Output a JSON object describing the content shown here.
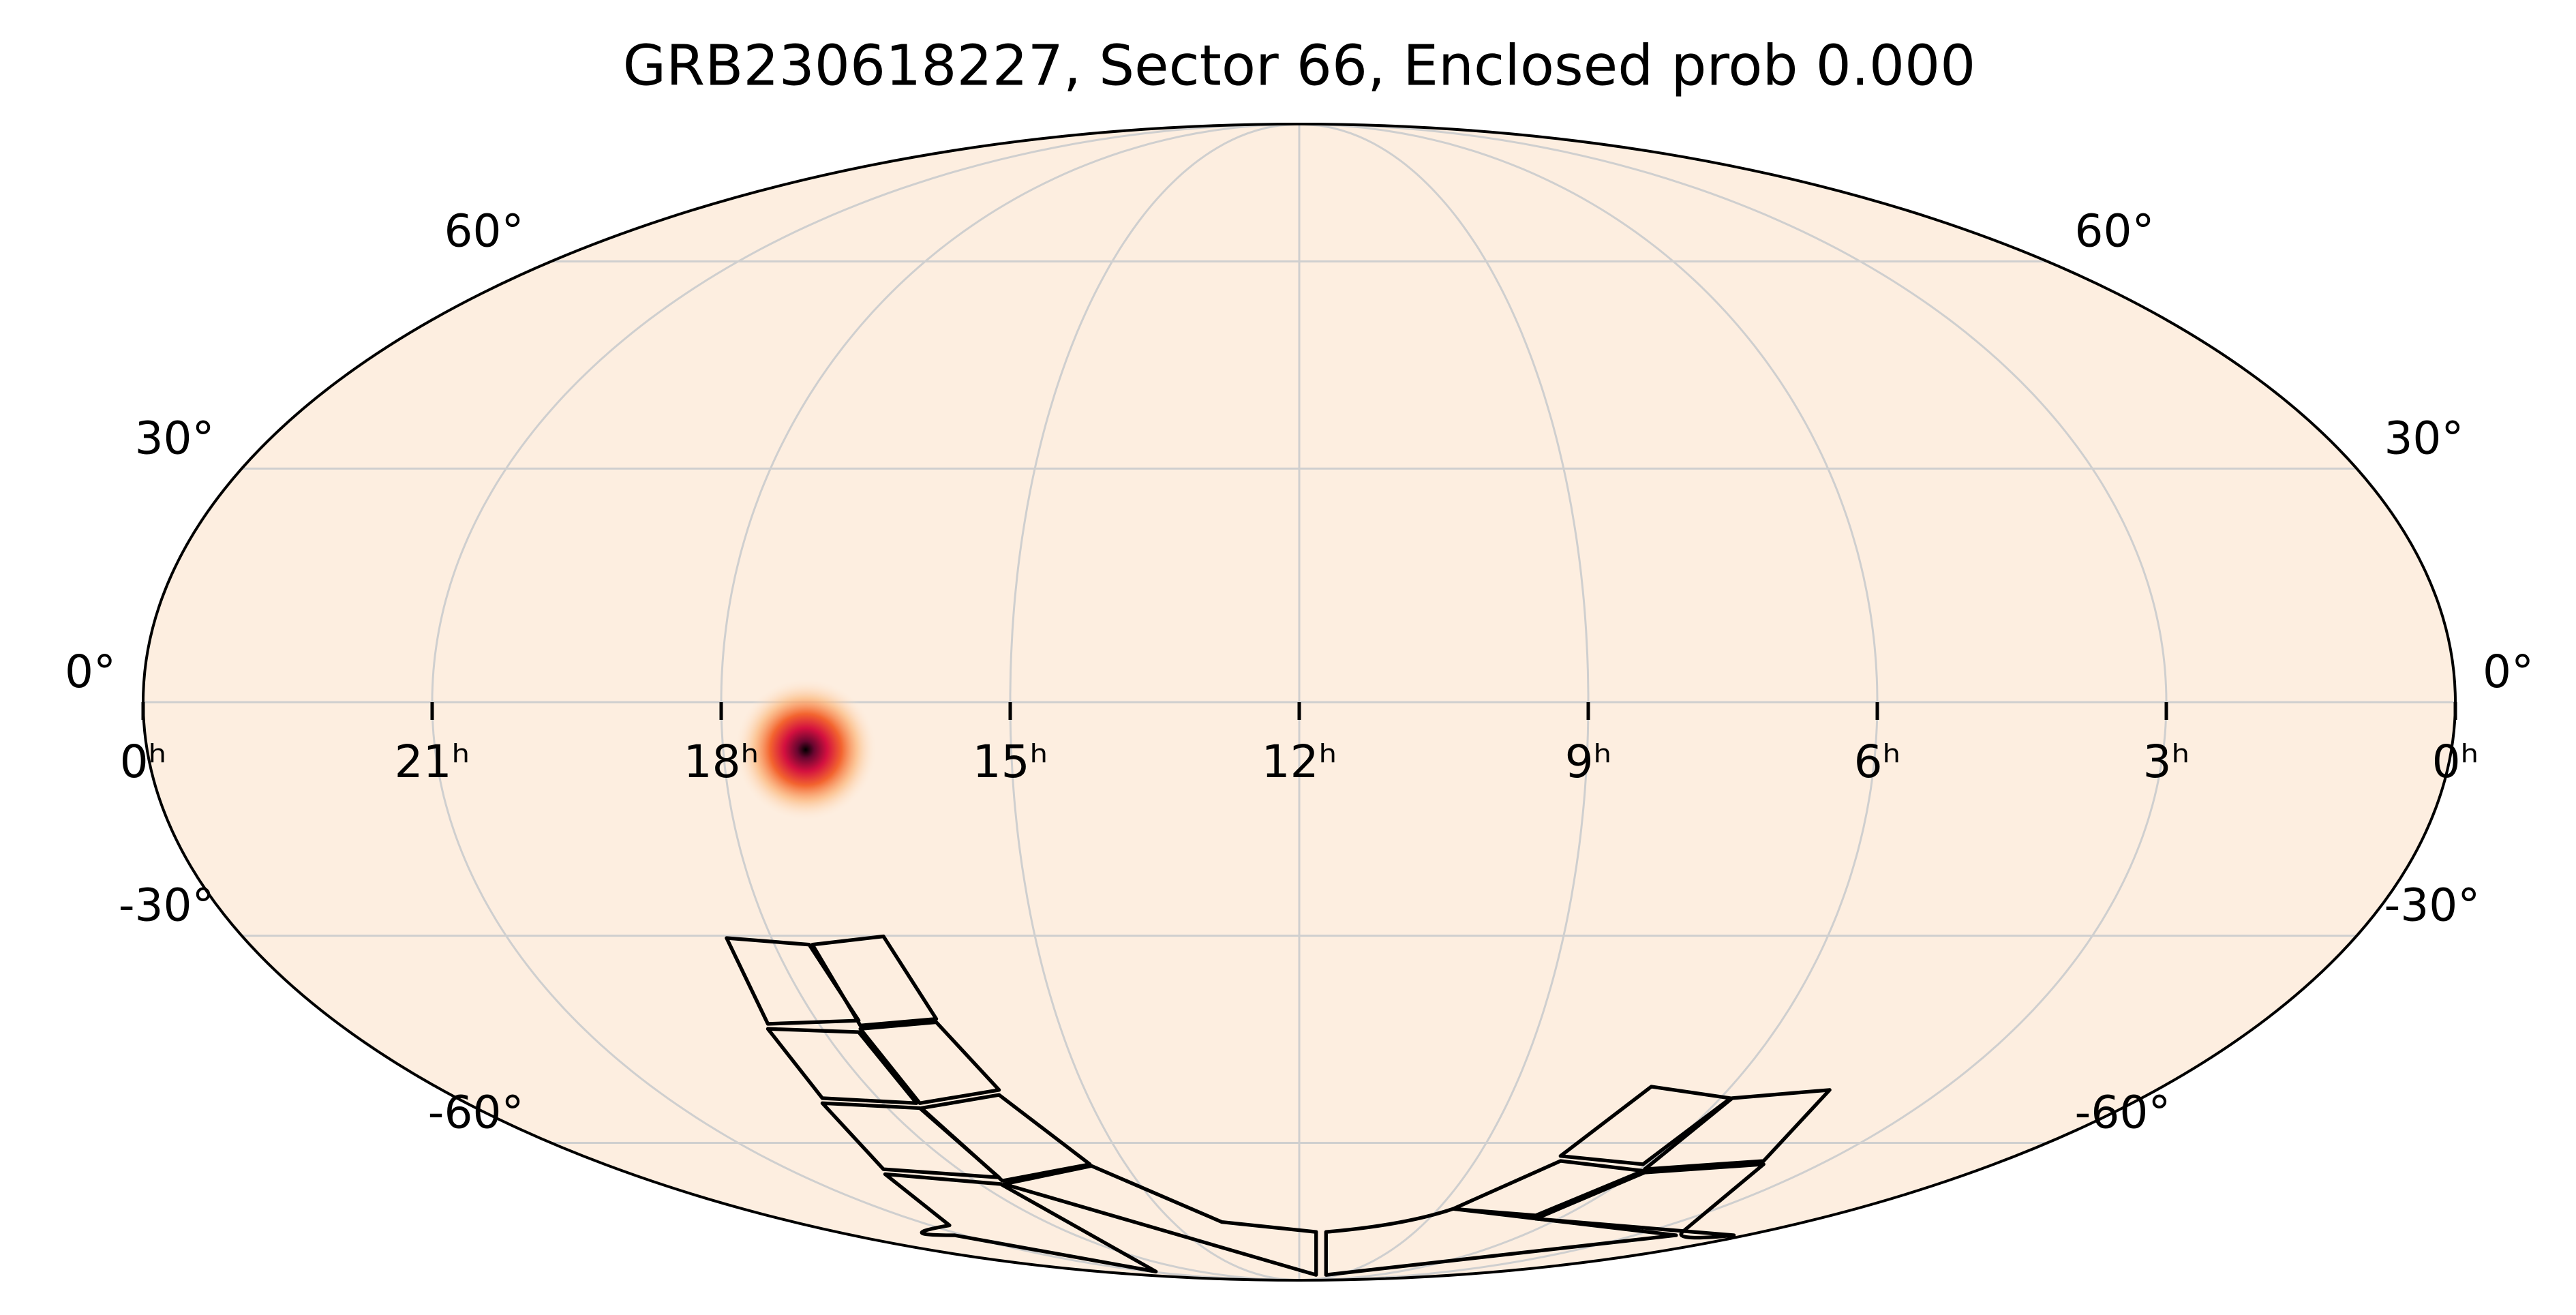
{
  "chart_data": {
    "type": "mollweide",
    "title": "GRB230618227, Sector 66, Enclosed prob 0.000",
    "xticks": [
      {
        "value": 24,
        "label": "0ʰ"
      },
      {
        "value": 21,
        "label": "21ʰ"
      },
      {
        "value": 18,
        "label": "18ʰ"
      },
      {
        "value": 15,
        "label": "15ʰ"
      },
      {
        "value": 12,
        "label": "12ʰ"
      },
      {
        "value": 9,
        "label": "9ʰ"
      },
      {
        "value": 6,
        "label": "6ʰ"
      },
      {
        "value": 3,
        "label": "3ʰ"
      },
      {
        "value": 0,
        "label": "0ʰ"
      }
    ],
    "yticks": [
      {
        "value": 60,
        "label": "60°"
      },
      {
        "value": 30,
        "label": "30°"
      },
      {
        "value": 0,
        "label": "0°"
      },
      {
        "value": -30,
        "label": "-30°"
      },
      {
        "value": -60,
        "label": "-60°"
      }
    ],
    "xlim": [
      24,
      0
    ],
    "ylim": [
      -90,
      90
    ],
    "grid": true,
    "background": "#fdeee0",
    "source": {
      "ra": 17.14,
      "dec": -6
    }
  }
}
